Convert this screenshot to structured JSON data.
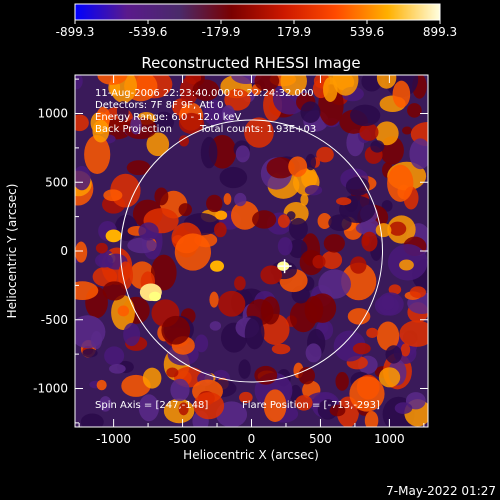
{
  "colorbar": {
    "ticks": [
      "-899.3",
      "-539.6",
      "-179.9",
      "179.9",
      "539.6",
      "899.3"
    ],
    "colors": [
      "#0000ff",
      "#5a1a8c",
      "#4a2a6a",
      "#7a0000",
      "#cc1800",
      "#ff4a00",
      "#ffb000",
      "#ffffe0"
    ]
  },
  "chart_data": {
    "type": "heatmap",
    "title": "Reconstructed RHESSI Image",
    "xlabel": "Heliocentric X (arcsec)",
    "ylabel": "Heliocentric Y (arcsec)",
    "xlim": [
      -1280,
      1280
    ],
    "ylim": [
      -1280,
      1280
    ],
    "x_ticks": [
      "-1000",
      "-500",
      "0",
      "500",
      "1000"
    ],
    "y_ticks": [
      "-1000",
      "-500",
      "0",
      "500",
      "1000"
    ],
    "value_range": [
      -899.3,
      899.3
    ],
    "solar_limb_radius": 950,
    "flare_position": [
      -713,
      -293
    ],
    "marker_position": [
      240,
      -110
    ],
    "annotations": {
      "time_range": "11-Aug-2006 22:23:40.000 to 22:24:32.000",
      "detectors": "Detectors: 7F 8F 9F, Att 0",
      "energy": "Energy Range: 6.0 - 12.0 keV",
      "method": "Back Projection",
      "counts": "Total counts: 1.93E+03",
      "spin_axis": "Spin Axis = [247,-148]",
      "flare_label": "Flare Position = [-713,-293]"
    }
  },
  "footer": {
    "timestamp": "7-May-2022 01:27"
  }
}
